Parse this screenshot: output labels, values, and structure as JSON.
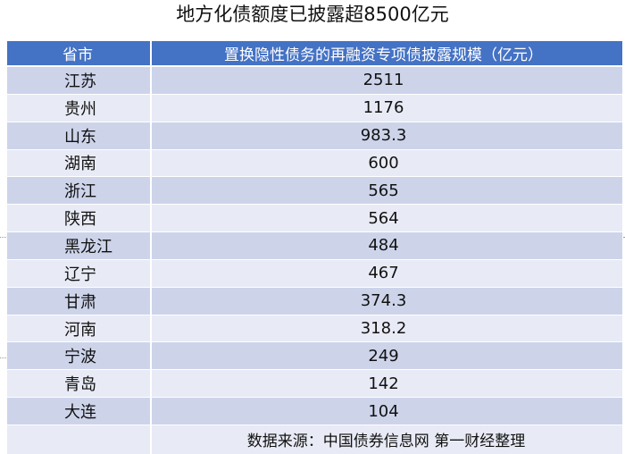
{
  "title": "地方化债额度已披露超8500亿元",
  "table": {
    "header": {
      "col1": "省市",
      "col2": "置换隐性债务的再融资专项债披露规模（亿元）"
    },
    "rows": [
      {
        "region": "江苏",
        "amount": "2511"
      },
      {
        "region": "贵州",
        "amount": "1176"
      },
      {
        "region": "山东",
        "amount": "983.3"
      },
      {
        "region": "湖南",
        "amount": "600"
      },
      {
        "region": "浙江",
        "amount": "565"
      },
      {
        "region": "陕西",
        "amount": "564"
      },
      {
        "region": "黑龙江",
        "amount": "484"
      },
      {
        "region": "辽宁",
        "amount": "467"
      },
      {
        "region": "甘肃",
        "amount": "374.3"
      },
      {
        "region": "河南",
        "amount": "318.2"
      },
      {
        "region": "宁波",
        "amount": "249"
      },
      {
        "region": "青岛",
        "amount": "142"
      },
      {
        "region": "大连",
        "amount": "104"
      }
    ],
    "source": "数据来源：中国债券信息网  第一财经整理"
  },
  "colors": {
    "header_bg": "#4472c4",
    "row_dark": "#cdd4ea",
    "row_light": "#e8ebf5",
    "text": "#111111"
  }
}
